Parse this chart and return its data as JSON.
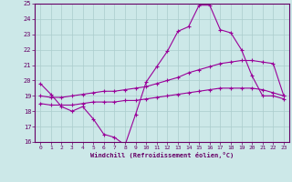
{
  "hours": [
    0,
    1,
    2,
    3,
    4,
    5,
    6,
    7,
    8,
    9,
    10,
    11,
    12,
    13,
    14,
    15,
    16,
    17,
    18,
    19,
    20,
    21,
    22,
    23
  ],
  "line1": [
    19.8,
    19.1,
    18.3,
    18.0,
    18.3,
    17.5,
    16.5,
    16.3,
    15.8,
    17.8,
    19.9,
    20.9,
    21.9,
    23.2,
    23.5,
    24.9,
    24.9,
    23.3,
    23.1,
    22.0,
    20.3,
    19.0,
    19.0,
    18.8
  ],
  "line2": [
    19.0,
    18.9,
    18.9,
    19.0,
    19.1,
    19.2,
    19.3,
    19.3,
    19.4,
    19.5,
    19.6,
    19.8,
    20.0,
    20.2,
    20.5,
    20.7,
    20.9,
    21.1,
    21.2,
    21.3,
    21.3,
    21.2,
    21.1,
    19.0
  ],
  "line3": [
    18.5,
    18.4,
    18.4,
    18.4,
    18.5,
    18.6,
    18.6,
    18.6,
    18.7,
    18.7,
    18.8,
    18.9,
    19.0,
    19.1,
    19.2,
    19.3,
    19.4,
    19.5,
    19.5,
    19.5,
    19.5,
    19.4,
    19.2,
    19.0
  ],
  "bg_color": "#cce8e8",
  "line_color": "#990099",
  "grid_color": "#aacccc",
  "xlabel": "Windchill (Refroidissement éolien,°C)",
  "ylim": [
    16,
    25
  ],
  "xlim": [
    0,
    23
  ],
  "yticks": [
    16,
    17,
    18,
    19,
    20,
    21,
    22,
    23,
    24,
    25
  ],
  "xticks": [
    0,
    1,
    2,
    3,
    4,
    5,
    6,
    7,
    8,
    9,
    10,
    11,
    12,
    13,
    14,
    15,
    16,
    17,
    18,
    19,
    20,
    21,
    22,
    23
  ]
}
